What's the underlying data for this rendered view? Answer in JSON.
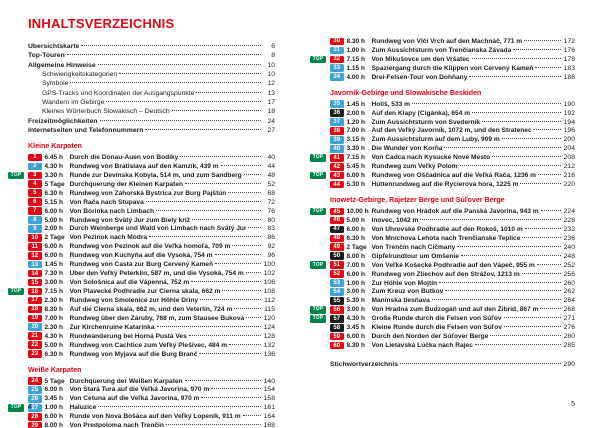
{
  "document_title": "INHALTSVERZEICHNIS",
  "legend": {
    "top_badge_label": "TOP"
  },
  "colors": {
    "accent_red": "#e30613",
    "badge_blue": "#3fa3d7",
    "badge_black": "#1d1d1b",
    "top_green": "#00844b",
    "text": "#1d1d1b"
  },
  "page_left": {
    "page_number": "4",
    "front_matter": [
      {
        "label": "Übersichtskarte",
        "page": "6",
        "style": "bold"
      },
      {
        "label": "Top-Touren",
        "page": "8",
        "style": "bold"
      },
      {
        "label": "Allgemeine Hinweise",
        "page": "10",
        "style": "bold"
      },
      {
        "label": "Schwierigkeitskategorien",
        "page": "10",
        "style": "sub"
      },
      {
        "label": "Symbole",
        "page": "12",
        "style": "sub"
      },
      {
        "label": "GPS-Tracks und Koordinaten der Ausgangspunkte",
        "page": "13",
        "style": "sub"
      },
      {
        "label": "Wandern im Gebirge",
        "page": "17",
        "style": "sub"
      },
      {
        "label": "Kleines Wörterbuch Slowakisch – Deutsch",
        "page": "18",
        "style": "sub"
      },
      {
        "label": "Freizeitmöglichkeiten",
        "page": "24",
        "style": "bold"
      },
      {
        "label": "Internetseiten und Telefonnummern",
        "page": "27",
        "style": "bold"
      }
    ],
    "sections": [
      {
        "heading": "Kleine Karpaten",
        "tours": [
          {
            "num": "1",
            "top": false,
            "difficulty": "red",
            "time": "6.45 h",
            "title": "Durch die Donau-Auen von Bodíky",
            "page": "40"
          },
          {
            "num": "2",
            "top": false,
            "difficulty": "blue",
            "time": "4.30 h",
            "title": "Rundweg von Bratislava auf den Kamzík, 439 m",
            "page": "44"
          },
          {
            "num": "3",
            "top": true,
            "difficulty": "red",
            "time": "3.30 h",
            "title": "Runde zur Devínska Kobyla, 514 m, und zum Sandberg",
            "page": "48"
          },
          {
            "num": "4",
            "top": false,
            "difficulty": "red",
            "time": "5 Tage",
            "title": "Durchquerung der Kleinen Karpaten",
            "page": "52"
          },
          {
            "num": "5",
            "top": false,
            "difficulty": "red",
            "time": "6.30 h",
            "title": "Rundweg von Záhorská Bystrica zur Burg Pajštún",
            "page": "68"
          },
          {
            "num": "6",
            "top": false,
            "difficulty": "red",
            "time": "5.15 h",
            "title": "Von Rača nach Stupava",
            "page": "72"
          },
          {
            "num": "7",
            "top": false,
            "difficulty": "red",
            "time": "6.00 h",
            "title": "Von Borinka nach Limbach",
            "page": "76"
          },
          {
            "num": "8",
            "top": false,
            "difficulty": "blue",
            "time": "5.00 h",
            "title": "Rundweg von Svätý Jur zum Biely kríž",
            "page": "80"
          },
          {
            "num": "9",
            "top": false,
            "difficulty": "blue",
            "time": "2.00 h",
            "title": "Durch Weinberge und Wald von Limbach nach Svätý Jur",
            "page": "83"
          },
          {
            "num": "10",
            "top": false,
            "difficulty": "red",
            "time": "2 Tage",
            "title": "Von Pezinok nach Modra",
            "page": "86"
          },
          {
            "num": "11",
            "top": false,
            "difficulty": "red",
            "time": "6.00 h",
            "title": "Rundweg von Pezinok auf die Veľká homoľa, 709 m",
            "page": "92"
          },
          {
            "num": "12",
            "top": false,
            "difficulty": "red",
            "time": "6.00 h",
            "title": "Rundweg von Kuchyňa auf die Vysoká, 754 m",
            "page": "96"
          },
          {
            "num": "13",
            "top": false,
            "difficulty": "blue",
            "time": "1.45 h",
            "title": "Rundweg von Častá zur Burg Červený Kameň",
            "page": "100"
          },
          {
            "num": "14",
            "top": false,
            "difficulty": "red",
            "time": "7.30 h",
            "title": "Über den Veľký Peterklin, 587 m, und die Vysoká, 754 m",
            "page": "102"
          },
          {
            "num": "15",
            "top": false,
            "difficulty": "red",
            "time": "3.00 h",
            "title": "Von Sološnica auf die Vápenná, 752 m",
            "page": "106"
          },
          {
            "num": "16",
            "top": true,
            "difficulty": "red",
            "time": "7.15 h",
            "title": "Von Plavecké Podhradie zur Čierna skala, 662 m",
            "page": "108"
          },
          {
            "num": "17",
            "top": false,
            "difficulty": "red",
            "time": "2.30 h",
            "title": "Rundweg von Smolenice zur Höhle Driny",
            "page": "112"
          },
          {
            "num": "18",
            "top": false,
            "difficulty": "red",
            "time": "8.30 h",
            "title": "Auf die Čierna skala, 662 m, und den Veterlín, 724 m",
            "page": "115"
          },
          {
            "num": "19",
            "top": false,
            "difficulty": "red",
            "time": "7.00 h",
            "title": "Rundweg über den Záruby, 768 m, zum Stausee Buková",
            "page": "120"
          },
          {
            "num": "20",
            "top": false,
            "difficulty": "blue",
            "time": "2.30 h",
            "title": "Zur Kirchenruine Katarínka",
            "page": "124"
          },
          {
            "num": "21",
            "top": false,
            "difficulty": "red",
            "time": "4.30 h",
            "title": "Rundwanderung bei Horná Pustá Ves",
            "page": "128"
          },
          {
            "num": "22",
            "top": false,
            "difficulty": "red",
            "time": "5.00 h",
            "title": "Rundweg von Čachtice zum Veľký Plešivec, 484 m",
            "page": "132"
          },
          {
            "num": "23",
            "top": false,
            "difficulty": "red",
            "time": "6.30 h",
            "title": "Rundweg von Myjava auf die Burg Branč",
            "page": "136"
          }
        ]
      },
      {
        "heading": "Weiße Karpaten",
        "tours": [
          {
            "num": "24",
            "top": false,
            "difficulty": "red",
            "time": "5 Tage",
            "title": "Durchquerung der Weißen Karpaten",
            "page": "140"
          },
          {
            "num": "25",
            "top": false,
            "difficulty": "blue",
            "time": "6.00 h",
            "title": "Von Stará Turá auf die Veľká Javorina, 970 m",
            "page": "154"
          },
          {
            "num": "26",
            "top": false,
            "difficulty": "blue",
            "time": "3.45 h",
            "title": "Von Cetuna auf die Veľká Javorina, 970 m",
            "page": "158"
          },
          {
            "num": "27",
            "top": true,
            "difficulty": "blue",
            "time": "1.00 h",
            "title": "Haluzice",
            "page": "161"
          },
          {
            "num": "28",
            "top": false,
            "difficulty": "red",
            "time": "6.00 h",
            "title": "Runde von Nová Bošáca auf den Veľký Lopeník, 911 m",
            "page": "164"
          },
          {
            "num": "29",
            "top": false,
            "difficulty": "red",
            "time": "8.00 h",
            "title": "Von Predpoloma nach Trenčín",
            "page": "168"
          }
        ]
      }
    ]
  },
  "page_right": {
    "page_number": "5",
    "sections": [
      {
        "heading": "",
        "tours": [
          {
            "num": "30",
            "top": false,
            "difficulty": "red",
            "time": "8.30 h",
            "title": "Rundweg von Vlčí Vrch auf den Machnáč, 771 m",
            "page": "172"
          },
          {
            "num": "31",
            "top": false,
            "difficulty": "blue",
            "time": "1.00 h",
            "title": "Zum Aussichtsturm von Trenčianska Závada",
            "page": "176"
          },
          {
            "num": "32",
            "top": true,
            "difficulty": "red",
            "time": "7.15 h",
            "title": "Von Mikušovce um den Vršatec",
            "page": "178"
          },
          {
            "num": "33",
            "top": false,
            "difficulty": "blue",
            "time": "1.15 h",
            "title": "Spaziergang durch die Klippen von Červený Kameň",
            "page": "183"
          },
          {
            "num": "34",
            "top": false,
            "difficulty": "blue",
            "time": "4.00 h",
            "title": "Drei-Felsen-Tour von Dohňany",
            "page": "186"
          }
        ]
      },
      {
        "heading": "Javorník-Gebirge und Slowakische Beskiden",
        "tours": [
          {
            "num": "35",
            "top": false,
            "difficulty": "blue",
            "time": "1.45 h",
            "title": "Holíš, 533 m",
            "page": "190"
          },
          {
            "num": "36",
            "top": false,
            "difficulty": "black",
            "time": "2.00 h",
            "title": "Auf den Klapy (Cigánka), 654 m",
            "page": "192"
          },
          {
            "num": "37",
            "top": false,
            "difficulty": "blue",
            "time": "1.20 h",
            "title": "Zum Aussichtsturm von Svederník",
            "page": "194"
          },
          {
            "num": "38",
            "top": false,
            "difficulty": "red",
            "time": "7.00 h",
            "title": "Auf den Veľký Javorník, 1072 m, und den Stratenec",
            "page": "196"
          },
          {
            "num": "39",
            "top": false,
            "difficulty": "blue",
            "time": "3.15 h",
            "title": "Zum Aussichtsturm auf dem Luby, 909 m",
            "page": "200"
          },
          {
            "num": "40",
            "top": false,
            "difficulty": "blue",
            "time": "3.30 h",
            "title": "Die Wunder von Korňa",
            "page": "204"
          },
          {
            "num": "41",
            "top": true,
            "difficulty": "red",
            "time": "7.15 h",
            "title": "Von Čadca nach Kysucké Nové Mesto",
            "page": "208"
          },
          {
            "num": "42",
            "top": false,
            "difficulty": "red",
            "time": "5.45 h",
            "title": "Rundweg zum Veľký Polom",
            "page": "212"
          },
          {
            "num": "43",
            "top": true,
            "difficulty": "red",
            "time": "6.00 h",
            "title": "Rundweg von Oščadnica auf die Veľká Rača, 1236 m",
            "page": "216"
          },
          {
            "num": "44",
            "top": false,
            "difficulty": "red",
            "time": "5.30 h",
            "title": "Hüttenrundweg auf die Rycierova hora, 1225 m",
            "page": "220"
          }
        ]
      },
      {
        "heading": "Inowetz-Gebirge, Rajetzer Berge und Súľover Berge",
        "tours": [
          {
            "num": "45",
            "top": true,
            "difficulty": "red",
            "time": "10.00 h",
            "title": "Rundweg von Hrádok auf die Panská Javorina, 943 m",
            "page": "224"
          },
          {
            "num": "46",
            "top": false,
            "difficulty": "red",
            "time": "5.00 h",
            "title": "Inovec, 1042 m",
            "page": "228"
          },
          {
            "num": "47",
            "top": false,
            "difficulty": "black",
            "time": "6.00 h",
            "title": "Von Uhrovské Podhradie auf den Rokoš, 1010 m",
            "page": "232"
          },
          {
            "num": "48",
            "top": false,
            "difficulty": "red",
            "time": "6.30 h",
            "title": "Von Mnichova Lehota nach Trenčianske Teplice",
            "page": "236"
          },
          {
            "num": "49",
            "top": false,
            "difficulty": "red",
            "time": "2 Tage",
            "title": "Von Trenčín nach Čičmany",
            "page": "240"
          },
          {
            "num": "50",
            "top": false,
            "difficulty": "black",
            "time": "8.00 h",
            "title": "Gipfelrundtour um Omšenie",
            "page": "248"
          },
          {
            "num": "51",
            "top": true,
            "difficulty": "red",
            "time": "7.00 h",
            "title": "Von Veľké Košecké Podhradie auf den Vápeč, 955 m",
            "page": "252"
          },
          {
            "num": "52",
            "top": false,
            "difficulty": "red",
            "time": "6.00 h",
            "title": "Rundweg von Zliechov auf den Strážov, 1213 m",
            "page": "256"
          },
          {
            "num": "53",
            "top": false,
            "difficulty": "blue",
            "time": "1.00 h",
            "title": "Zur Höhle von Mojtín",
            "page": "260"
          },
          {
            "num": "54",
            "top": false,
            "difficulty": "blue",
            "time": "3.00 h",
            "title": "Zum Kreuz von Butkov",
            "page": "262"
          },
          {
            "num": "55",
            "top": false,
            "difficulty": "black",
            "time": "5.30 h",
            "title": "Maninska tiesňava",
            "page": "264"
          },
          {
            "num": "56",
            "top": true,
            "difficulty": "red",
            "time": "3.00 h",
            "title": "Von Hradná zum Budzogáň und auf den Žibrid, 867 m",
            "page": "268"
          },
          {
            "num": "57",
            "top": true,
            "difficulty": "black",
            "time": "4.30 h",
            "title": "Große Runde durch die Felsen von Súľov",
            "page": "271"
          },
          {
            "num": "58",
            "top": false,
            "difficulty": "black",
            "time": "3.45 h",
            "title": "Kleine Runde durch die Felsen von Súľov",
            "page": "276"
          },
          {
            "num": "59",
            "top": false,
            "difficulty": "red",
            "time": "6.00 h",
            "title": "Durch den Norden der Súľover Berge",
            "page": "280"
          },
          {
            "num": "60",
            "top": false,
            "difficulty": "red",
            "time": "8.30 h",
            "title": "Von Lietavská Lúčka nach Rajec",
            "page": "285"
          }
        ]
      }
    ],
    "index_entry": {
      "label": "Stichwortverzeichnis",
      "page": "290"
    }
  }
}
